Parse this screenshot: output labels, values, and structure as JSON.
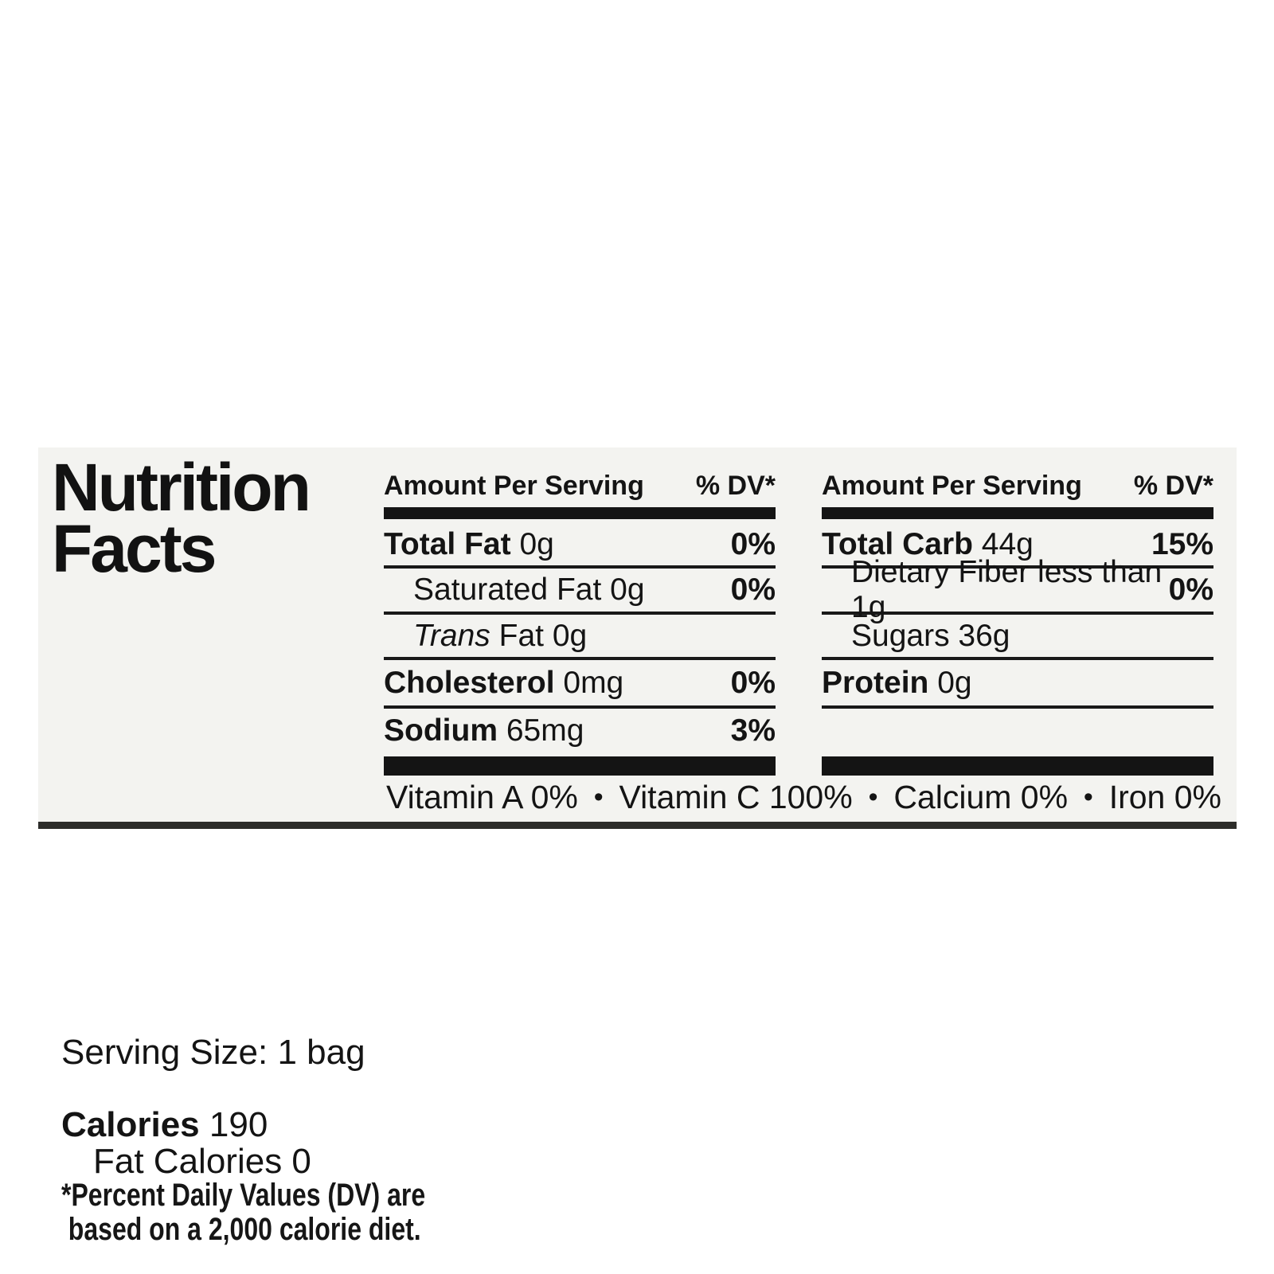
{
  "colors": {
    "page_background": "#ffffff",
    "label_background": "#f3f3f0",
    "text": "#141414",
    "bars": "#141414",
    "label_bottom_edge": "#2d2d2a"
  },
  "left": {
    "title_line1": "Nutrition",
    "title_line2": "Facts",
    "serving_size": "Serving Size: 1 bag",
    "calories_label": "Calories",
    "calories_value": "190",
    "fat_calories": "Fat Calories 0",
    "footnote_line1": "*Percent Daily Values (DV) are",
    "footnote_line2": "based on a 2,000 calorie diet."
  },
  "middle": {
    "header_amount": "Amount Per Serving",
    "header_dv": "% DV*",
    "rows": [
      {
        "name": "Total Fat",
        "amount": " 0g",
        "dv": "0%"
      },
      {
        "name": "Saturated Fat 0g",
        "dv": "0%"
      },
      {
        "name_italic": "Trans",
        "name_rest": " Fat 0g",
        "dv": ""
      },
      {
        "name": "Cholesterol",
        "amount": " 0mg",
        "dv": "0%"
      },
      {
        "name": "Sodium",
        "amount": " 65mg",
        "dv": "3%"
      }
    ]
  },
  "right": {
    "header_amount": "Amount Per Serving",
    "header_dv": "% DV*",
    "rows": [
      {
        "name": "Total Carb",
        "amount": " 44g",
        "dv": "15%"
      },
      {
        "name": "Dietary Fiber less than 1g",
        "dv": "0%"
      },
      {
        "name": "Sugars 36g",
        "dv": ""
      },
      {
        "name": "Protein",
        "amount": " 0g",
        "dv": ""
      }
    ]
  },
  "vitamins": {
    "bullet": "•",
    "items": [
      "Vitamin A 0%",
      "Vitamin C 100%",
      "Calcium 0%",
      "Iron 0%"
    ]
  }
}
